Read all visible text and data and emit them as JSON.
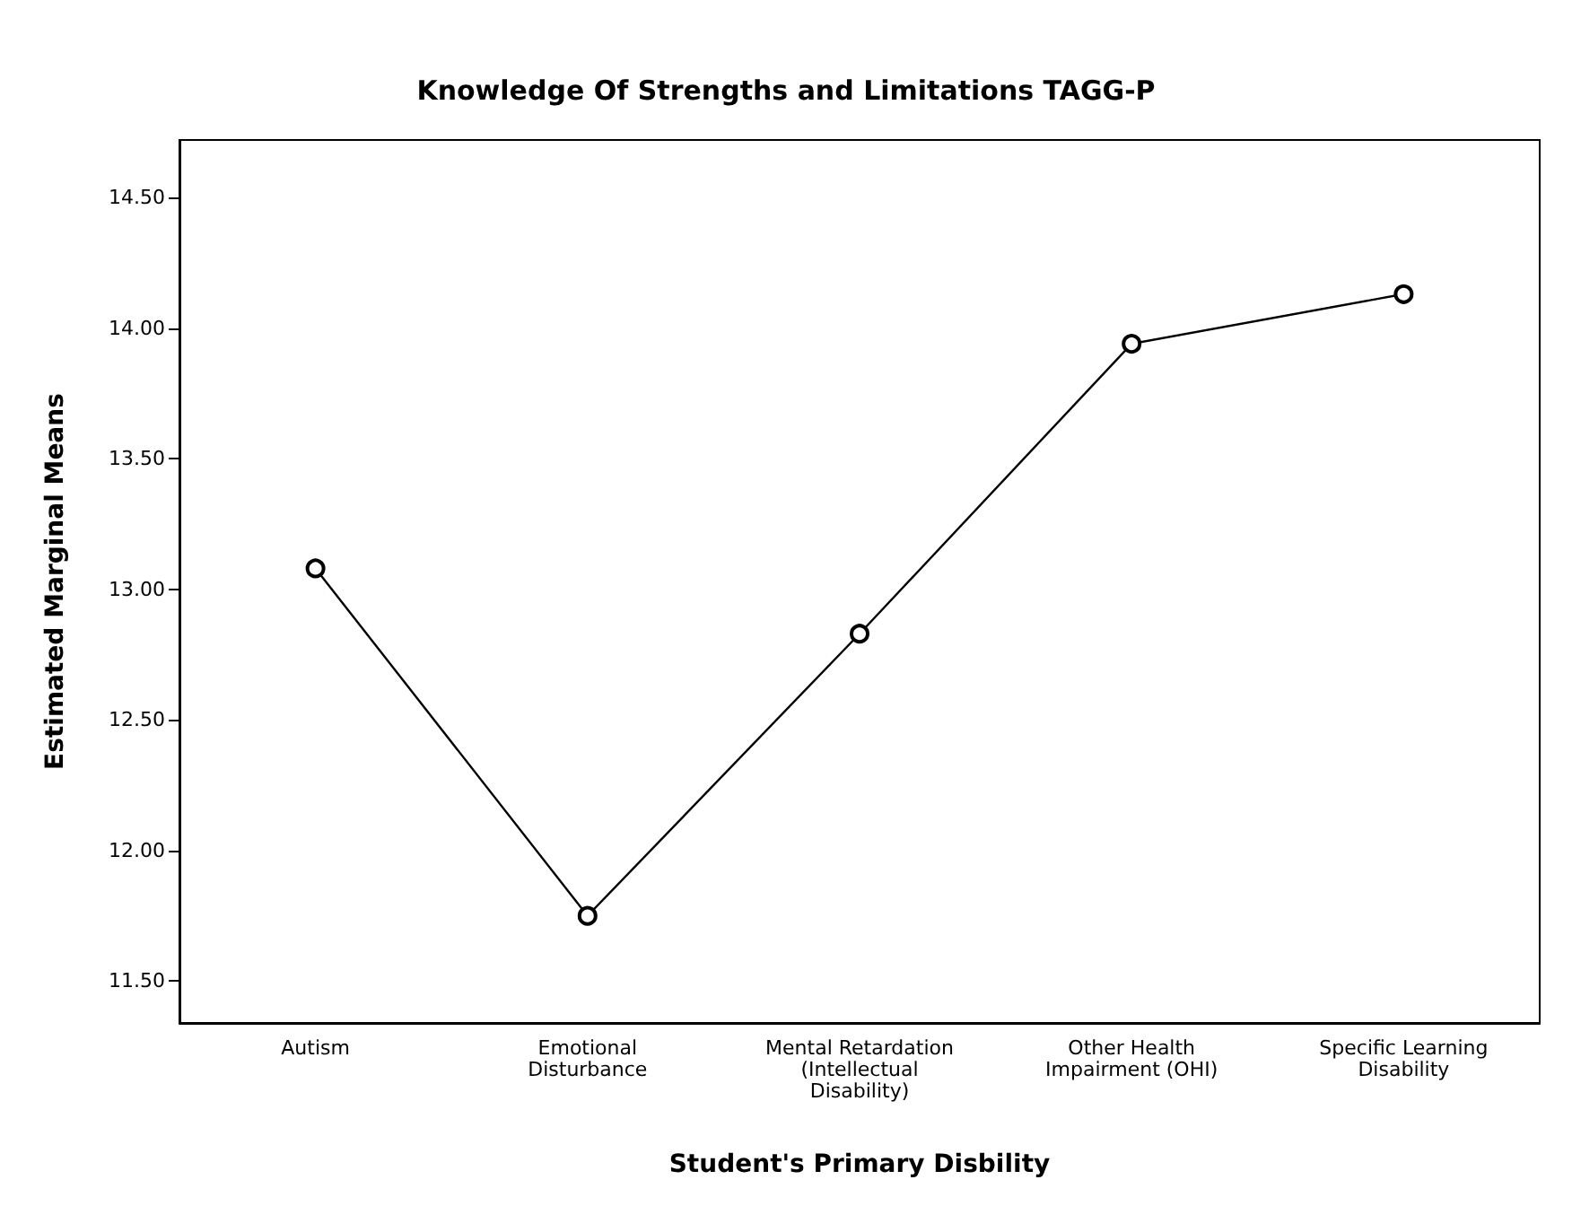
{
  "chart_data": {
    "type": "line",
    "title": "Knowledge Of Strengths and Limitations TAGG-P",
    "xlabel": "Student's Primary Disbility",
    "ylabel": "Estimated Marginal Means",
    "categories": [
      "Autism",
      "Emotional\nDisturbance",
      "Mental Retardation\n(Intellectual\nDisability)",
      "Other Health\nImpairment (OHI)",
      "Specific Learning\nDisability"
    ],
    "values": [
      13.08,
      11.75,
      12.83,
      13.94,
      14.13
    ],
    "color": "#000000",
    "marker": "circle",
    "line_style": "solid",
    "grid": false,
    "ylim": [
      11.34,
      14.72
    ],
    "yticks": [
      {
        "value": 11.5,
        "label": "11.50"
      },
      {
        "value": 12,
        "label": "12.00"
      },
      {
        "value": 12.5,
        "label": "12.50"
      },
      {
        "value": 13,
        "label": "13.00"
      },
      {
        "value": 13.5,
        "label": "13.50"
      },
      {
        "value": 14,
        "label": "14.00"
      },
      {
        "value": 14.5,
        "label": "14.50"
      }
    ]
  }
}
